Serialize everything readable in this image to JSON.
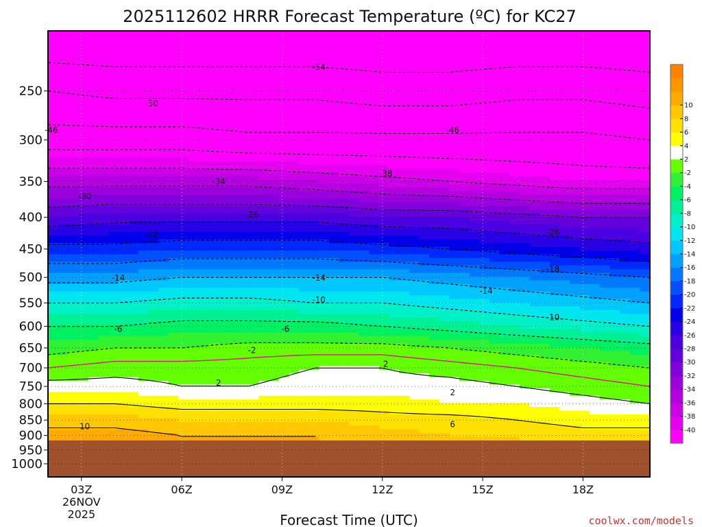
{
  "title": "2025112602 HRRR Forecast Temperature (ºC) for KC27",
  "credit": "coolwx.com/models",
  "colors": {
    "ground": "#a0522d",
    "freezing_line": "#e0148c",
    "contour": "#000000",
    "credit": "#d23232"
  },
  "chart_data": {
    "type": "heatmap",
    "title": "2025112602 HRRR Forecast Temperature (ºC) for KC27",
    "xlabel": "Forecast Time (UTC)",
    "ylabel": "",
    "x_unit": "hours since 2025112602",
    "x_ticks": [
      {
        "hour": 1,
        "label": "03Z",
        "date_line1": "26NOV",
        "date_line2": "2025"
      },
      {
        "hour": 4,
        "label": "06Z"
      },
      {
        "hour": 7,
        "label": "09Z"
      },
      {
        "hour": 10,
        "label": "12Z"
      },
      {
        "hour": 13,
        "label": "15Z"
      },
      {
        "hour": 16,
        "label": "18Z"
      }
    ],
    "xlim": [
      0,
      18
    ],
    "y_ticks": [
      250,
      300,
      350,
      400,
      450,
      500,
      550,
      600,
      650,
      700,
      750,
      800,
      850,
      900,
      950,
      1000
    ],
    "ylim": [
      1050,
      200
    ],
    "y_scale": "log-pressure (hPa)",
    "grid": true,
    "colorbar": {
      "position": "right",
      "levels": [
        -40,
        -38,
        -36,
        -34,
        -32,
        -30,
        -28,
        -26,
        -24,
        -22,
        -20,
        -18,
        -16,
        -14,
        -12,
        -10,
        -8,
        -6,
        -4,
        -2,
        2,
        4,
        6,
        8,
        10
      ],
      "tick_labels": [
        "-40",
        "-38",
        "-36",
        "-34",
        "-32",
        "-30",
        "-28",
        "-26",
        "-24",
        "-22",
        "-20",
        "-18",
        "-16",
        "-14",
        "-12",
        "-10",
        "-8",
        "-6",
        "-4",
        "-2",
        "2",
        "4",
        "6",
        "8",
        "10"
      ],
      "colors": [
        "#ff00ff",
        "#e600f0",
        "#cc00e6",
        "#b400e1",
        "#9b00dc",
        "#8200dc",
        "#6400dc",
        "#4b00e1",
        "#2800e6",
        "#0000eb",
        "#0028ff",
        "#0050ff",
        "#0078ff",
        "#00a0ff",
        "#00c8ff",
        "#00e6f0",
        "#00f0c8",
        "#00f096",
        "#00f064",
        "#32f032",
        "#64ff00",
        "#ffffff",
        "#ffff00",
        "#ffe100",
        "#ffc800",
        "#ffaa00",
        "#ff9600",
        "#ff8200"
      ]
    },
    "surface_pressure_hpa": 917,
    "temperature_profile": {
      "hours": [
        0,
        2,
        4,
        6,
        8,
        10,
        12,
        14,
        16,
        18
      ],
      "pressures": [
        200,
        250,
        300,
        350,
        400,
        450,
        500,
        550,
        600,
        650,
        700,
        750,
        800,
        850,
        900
      ],
      "values_c": [
        [
          -58,
          -58,
          -58,
          -58,
          -58,
          -58,
          -58,
          -58,
          -58,
          -58
        ],
        [
          -50,
          -51,
          -51,
          -51,
          -51,
          -52,
          -52,
          -51,
          -51,
          -52
        ],
        [
          -44,
          -44,
          -44,
          -45,
          -45,
          -45,
          -45,
          -45,
          -45,
          -46
        ],
        [
          -35,
          -35,
          -35,
          -35,
          -36,
          -37,
          -38,
          -39,
          -40,
          -40
        ],
        [
          -28,
          -27,
          -27,
          -27,
          -27,
          -28,
          -28,
          -29,
          -30,
          -30
        ],
        [
          -21,
          -21,
          -20,
          -20,
          -20,
          -21,
          -22,
          -23,
          -24,
          -25
        ],
        [
          -15,
          -15,
          -14,
          -14,
          -14,
          -14,
          -15,
          -16,
          -17,
          -18
        ],
        [
          -10,
          -10,
          -9,
          -9,
          -10,
          -10,
          -11,
          -12,
          -13,
          -14
        ],
        [
          -6,
          -6,
          -5,
          -5,
          -5,
          -6,
          -7,
          -8,
          -9,
          -10
        ],
        [
          -3,
          -2,
          -2,
          -1,
          -1,
          -1,
          -2,
          -3,
          -4,
          -5
        ],
        [
          0,
          1,
          1,
          1,
          2,
          2,
          1,
          0,
          -1,
          -2
        ],
        [
          3,
          3,
          2,
          2,
          3,
          3,
          3,
          2,
          1,
          0
        ],
        [
          6,
          6,
          5,
          5,
          5,
          5,
          4,
          4,
          3,
          2
        ],
        [
          9,
          9,
          8,
          8,
          8,
          7,
          7,
          6,
          5,
          5
        ],
        [
          11,
          11,
          10,
          10,
          10,
          9,
          8,
          8,
          7,
          7
        ]
      ]
    },
    "contour_labels": [
      {
        "text": "-54",
        "hour": 8.1,
        "p": 229
      },
      {
        "text": "-50",
        "hour": 3.1,
        "p": 262
      },
      {
        "text": "-46",
        "hour": 0.1,
        "p": 289
      },
      {
        "text": "-46",
        "hour": 12.1,
        "p": 289
      },
      {
        "text": "-38",
        "hour": 10.1,
        "p": 340
      },
      {
        "text": "-34",
        "hour": 5.1,
        "p": 350
      },
      {
        "text": "-30",
        "hour": 1.1,
        "p": 370
      },
      {
        "text": "-26",
        "hour": 6.1,
        "p": 396
      },
      {
        "text": "-26",
        "hour": 15.1,
        "p": 423
      },
      {
        "text": "-22",
        "hour": 3.1,
        "p": 426
      },
      {
        "text": "-18",
        "hour": 15.1,
        "p": 485
      },
      {
        "text": "-14",
        "hour": 2.1,
        "p": 501
      },
      {
        "text": "-14",
        "hour": 8.1,
        "p": 501
      },
      {
        "text": "-14",
        "hour": 13.1,
        "p": 526
      },
      {
        "text": "-10",
        "hour": 8.1,
        "p": 544
      },
      {
        "text": "-10",
        "hour": 15.1,
        "p": 580
      },
      {
        "text": "-6",
        "hour": 2.1,
        "p": 606
      },
      {
        "text": "-6",
        "hour": 7.1,
        "p": 606
      },
      {
        "text": "-2",
        "hour": 6.1,
        "p": 656
      },
      {
        "text": "2",
        "hour": 10.1,
        "p": 690
      },
      {
        "text": "2",
        "hour": 5.1,
        "p": 740
      },
      {
        "text": "2",
        "hour": 12.1,
        "p": 767
      },
      {
        "text": "6",
        "hour": 12.1,
        "p": 864
      },
      {
        "text": "10",
        "hour": 1.1,
        "p": 870
      }
    ]
  }
}
